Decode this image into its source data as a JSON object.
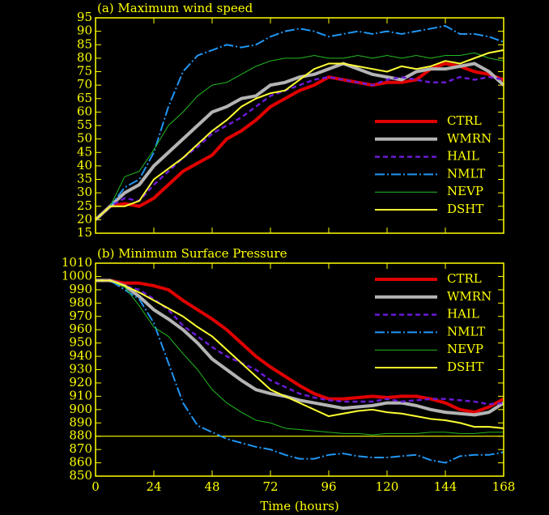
{
  "chart_data": [
    {
      "type": "line",
      "title": "(a) Maximum wind speed",
      "x": [
        0,
        6,
        12,
        18,
        24,
        30,
        36,
        42,
        48,
        54,
        60,
        66,
        72,
        78,
        84,
        90,
        96,
        102,
        108,
        114,
        120,
        126,
        132,
        138,
        144,
        150,
        156,
        162,
        168
      ],
      "xlim": [
        0,
        168
      ],
      "ylim": [
        15,
        95
      ],
      "yticks": [
        15,
        20,
        25,
        30,
        35,
        40,
        45,
        50,
        55,
        60,
        65,
        70,
        75,
        80,
        85,
        90,
        95
      ],
      "legend": "right",
      "series": [
        {
          "name": "CTRL",
          "color": "#e00000",
          "style": "thick",
          "values": [
            20,
            25,
            26,
            25,
            28,
            33,
            38,
            41,
            44,
            50,
            53,
            57,
            62,
            65,
            68,
            70,
            73,
            72,
            71,
            70,
            71,
            71,
            72,
            76,
            78,
            77,
            75,
            74,
            72
          ]
        },
        {
          "name": "WMRN",
          "color": "#b4b4b4",
          "style": "thick",
          "values": [
            20,
            25,
            30,
            33,
            40,
            45,
            50,
            55,
            60,
            62,
            65,
            66,
            70,
            71,
            73,
            74,
            76,
            78,
            76,
            74,
            73,
            72,
            75,
            76,
            76,
            77,
            78,
            75,
            70
          ]
        },
        {
          "name": "HAIL",
          "color": "#6a1ad6",
          "style": "dashed",
          "values": [
            20,
            25,
            28,
            27,
            33,
            38,
            43,
            47,
            52,
            55,
            58,
            62,
            66,
            68,
            70,
            72,
            73,
            72,
            71,
            70,
            72,
            73,
            72,
            71,
            71,
            73,
            72,
            73,
            72
          ]
        },
        {
          "name": "NMLT",
          "color": "#2196f3",
          "style": "dash-dot",
          "values": [
            20,
            25,
            32,
            35,
            45,
            62,
            75,
            81,
            83,
            85,
            84,
            85,
            88,
            90,
            91,
            90,
            88,
            89,
            90,
            89,
            90,
            89,
            90,
            91,
            92,
            89,
            89,
            88,
            86
          ]
        },
        {
          "name": "NEVP",
          "color": "#22bb22",
          "style": "thin",
          "values": [
            20,
            25,
            36,
            38,
            46,
            55,
            60,
            66,
            70,
            71,
            74,
            77,
            79,
            80,
            80,
            81,
            80,
            80,
            81,
            80,
            81,
            80,
            81,
            80,
            81,
            81,
            82,
            80,
            79
          ]
        },
        {
          "name": "DSHT",
          "color": "#ffff33",
          "style": "solid",
          "values": [
            20,
            25,
            25,
            27,
            35,
            39,
            43,
            48,
            53,
            57,
            62,
            65,
            67,
            68,
            72,
            76,
            78,
            78,
            77,
            76,
            75,
            77,
            76,
            77,
            79,
            78,
            80,
            82,
            83
          ]
        }
      ]
    },
    {
      "type": "line",
      "title": "(b) Minimum Surface Pressure",
      "xlabel": "Time (hours)",
      "x": [
        0,
        6,
        12,
        18,
        24,
        30,
        36,
        42,
        48,
        54,
        60,
        66,
        72,
        78,
        84,
        90,
        96,
        102,
        108,
        114,
        120,
        126,
        132,
        138,
        144,
        150,
        156,
        162,
        168
      ],
      "xlim": [
        0,
        168
      ],
      "xticks": [
        0,
        24,
        48,
        72,
        96,
        120,
        144,
        168
      ],
      "ylim": [
        850,
        1010
      ],
      "yticks": [
        850,
        860,
        870,
        880,
        890,
        900,
        910,
        920,
        930,
        940,
        950,
        960,
        970,
        980,
        990,
        1000,
        1010
      ],
      "reference_line": 880,
      "legend": "right",
      "series": [
        {
          "name": "CTRL",
          "color": "#e00000",
          "style": "thick",
          "values": [
            997,
            997,
            995,
            995,
            993,
            990,
            982,
            975,
            968,
            960,
            950,
            940,
            932,
            925,
            918,
            912,
            908,
            908,
            909,
            910,
            909,
            910,
            910,
            908,
            905,
            900,
            898,
            902,
            908
          ]
        },
        {
          "name": "WMRN",
          "color": "#b4b4b4",
          "style": "thick",
          "values": [
            997,
            997,
            993,
            985,
            975,
            968,
            960,
            950,
            938,
            930,
            922,
            915,
            912,
            910,
            907,
            905,
            903,
            901,
            902,
            903,
            905,
            905,
            903,
            900,
            898,
            897,
            896,
            898,
            905
          ]
        },
        {
          "name": "HAIL",
          "color": "#6a1ad6",
          "style": "dashed",
          "values": [
            997,
            997,
            993,
            990,
            983,
            975,
            963,
            955,
            947,
            940,
            935,
            930,
            922,
            917,
            912,
            909,
            907,
            906,
            906,
            906,
            908,
            906,
            907,
            908,
            908,
            907,
            906,
            904,
            905
          ]
        },
        {
          "name": "NMLT",
          "color": "#2196f3",
          "style": "dash-dot",
          "values": [
            997,
            997,
            990,
            983,
            965,
            935,
            905,
            888,
            883,
            878,
            875,
            872,
            870,
            866,
            863,
            863,
            866,
            867,
            865,
            864,
            864,
            865,
            866,
            862,
            860,
            865,
            866,
            866,
            868
          ]
        },
        {
          "name": "NEVP",
          "color": "#22bb22",
          "style": "thin",
          "values": [
            997,
            997,
            992,
            978,
            962,
            955,
            942,
            930,
            915,
            905,
            898,
            892,
            890,
            886,
            885,
            884,
            883,
            882,
            882,
            881,
            882,
            882,
            882,
            883,
            883,
            882,
            882,
            883,
            883
          ]
        },
        {
          "name": "DSHT",
          "color": "#ffff33",
          "style": "solid",
          "values": [
            997,
            997,
            993,
            988,
            982,
            976,
            970,
            962,
            955,
            945,
            935,
            925,
            915,
            910,
            905,
            900,
            895,
            897,
            899,
            900,
            898,
            897,
            895,
            893,
            892,
            890,
            887,
            887,
            886
          ]
        }
      ]
    }
  ]
}
